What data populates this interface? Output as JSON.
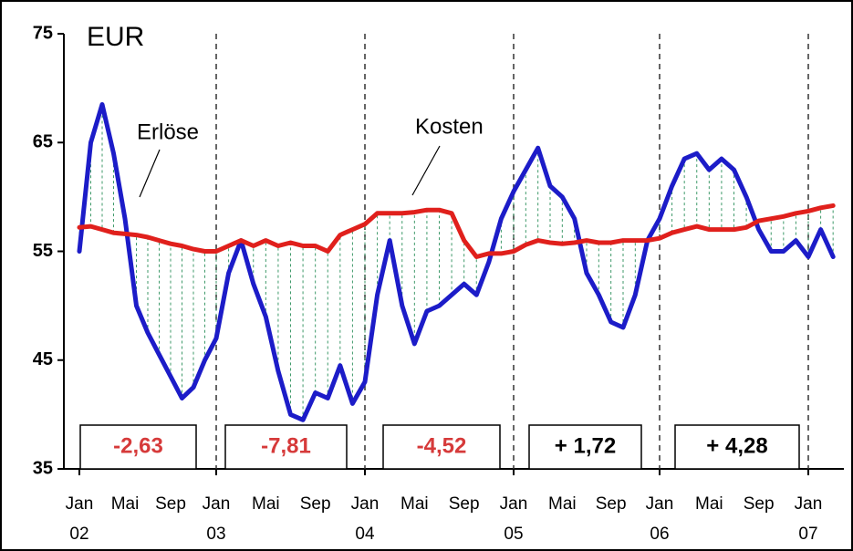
{
  "chart_data": {
    "type": "line",
    "unit_label": "EUR",
    "categories": [
      "Jan",
      null,
      null,
      null,
      "Mai",
      null,
      null,
      null,
      "Sep",
      null,
      null,
      null,
      "Jan",
      null,
      null,
      null,
      "Mai",
      null,
      null,
      null,
      "Sep",
      null,
      null,
      null,
      "Jan",
      null,
      null,
      null,
      "Mai",
      null,
      null,
      null,
      "Sep",
      null,
      null,
      null,
      "Jan",
      null,
      null,
      null,
      "Mai",
      null,
      null,
      null,
      "Sep",
      null,
      null,
      null,
      "Jan",
      null,
      null,
      null,
      "Mai",
      null,
      null,
      null,
      "Sep",
      null,
      null,
      null,
      "Jan",
      null,
      null
    ],
    "year_labels": [
      "02",
      "03",
      "04",
      "05",
      "06",
      "07"
    ],
    "series": [
      {
        "name": "Erlöse",
        "color": "#1c1cc8",
        "values": [
          55,
          65,
          68.5,
          64,
          58,
          50,
          47.5,
          45.5,
          43.5,
          41.5,
          42.5,
          45,
          47,
          53,
          56,
          52,
          49,
          44,
          40,
          39.5,
          42,
          41.5,
          44.5,
          41,
          43,
          51,
          56,
          50,
          46.5,
          49.5,
          50,
          51,
          52,
          51,
          54,
          58,
          60.5,
          62.5,
          64.5,
          61,
          60,
          58,
          53,
          51,
          48.5,
          48,
          51,
          56,
          58,
          61,
          63.5,
          64,
          62.5,
          63.5,
          62.5,
          60,
          57,
          55,
          55,
          56,
          54.5,
          57,
          54.5
        ]
      },
      {
        "name": "Kosten",
        "color": "#e0201c",
        "values": [
          57.2,
          57.3,
          57,
          56.7,
          56.6,
          56.5,
          56.3,
          56,
          55.7,
          55.5,
          55.2,
          55,
          55,
          55.5,
          56,
          55.5,
          56,
          55.5,
          55.8,
          55.5,
          55.5,
          55,
          56.5,
          57,
          57.5,
          58.5,
          58.5,
          58.5,
          58.6,
          58.8,
          58.8,
          58.5,
          56,
          54.5,
          54.8,
          54.8,
          55,
          55.6,
          56,
          55.8,
          55.7,
          55.8,
          56,
          55.8,
          55.8,
          56,
          56,
          56,
          56.2,
          56.7,
          57,
          57.3,
          57,
          57,
          57,
          57.2,
          57.8,
          58,
          58.2,
          58.5,
          58.7,
          59,
          59.2
        ]
      }
    ],
    "annotations": [
      {
        "text": "-2,63",
        "color": "#d63a3a"
      },
      {
        "text": "-7,81",
        "color": "#d63a3a"
      },
      {
        "text": "-4,52",
        "color": "#d63a3a"
      },
      {
        "text": "+ 1,72",
        "color": "#000000"
      },
      {
        "text": "+ 4,28",
        "color": "#000000"
      }
    ],
    "ylim": [
      35,
      75
    ],
    "yticks": [
      35,
      45,
      55,
      65,
      75
    ]
  }
}
